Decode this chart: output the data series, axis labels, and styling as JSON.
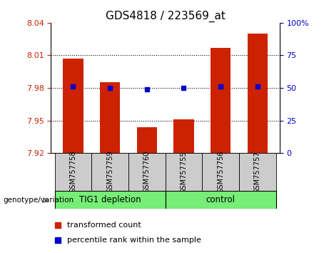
{
  "title": "GDS4818 / 223569_at",
  "samples": [
    "GSM757758",
    "GSM757759",
    "GSM757760",
    "GSM757755",
    "GSM757756",
    "GSM757757"
  ],
  "bar_values": [
    8.007,
    7.985,
    7.944,
    7.951,
    8.017,
    8.03
  ],
  "percentile_values": [
    7.981,
    7.98,
    7.979,
    7.98,
    7.981,
    7.981
  ],
  "ylim_left": [
    7.92,
    8.04
  ],
  "yticks_left": [
    7.92,
    7.95,
    7.98,
    8.01,
    8.04
  ],
  "ytick_labels_left": [
    "7.92",
    "7.95",
    "7.98",
    "8.01",
    "8.04"
  ],
  "ylim_right": [
    0,
    100
  ],
  "yticks_right": [
    0,
    25,
    50,
    75,
    100
  ],
  "ytick_labels_right": [
    "0",
    "25",
    "50",
    "75",
    "100%"
  ],
  "bar_color": "#cc2200",
  "percentile_color": "#0000cc",
  "group1_label": "TIG1 depletion",
  "group2_label": "control",
  "group_color": "#77ee77",
  "sample_bg_color": "#cccccc",
  "legend_label1": "transformed count",
  "legend_label2": "percentile rank within the sample",
  "genotype_label": "genotype/variation",
  "hgrid_values": [
    7.95,
    7.98,
    8.01
  ],
  "bar_width": 0.55,
  "title_fontsize": 11,
  "tick_fontsize": 8,
  "sample_fontsize": 7,
  "legend_fontsize": 8
}
